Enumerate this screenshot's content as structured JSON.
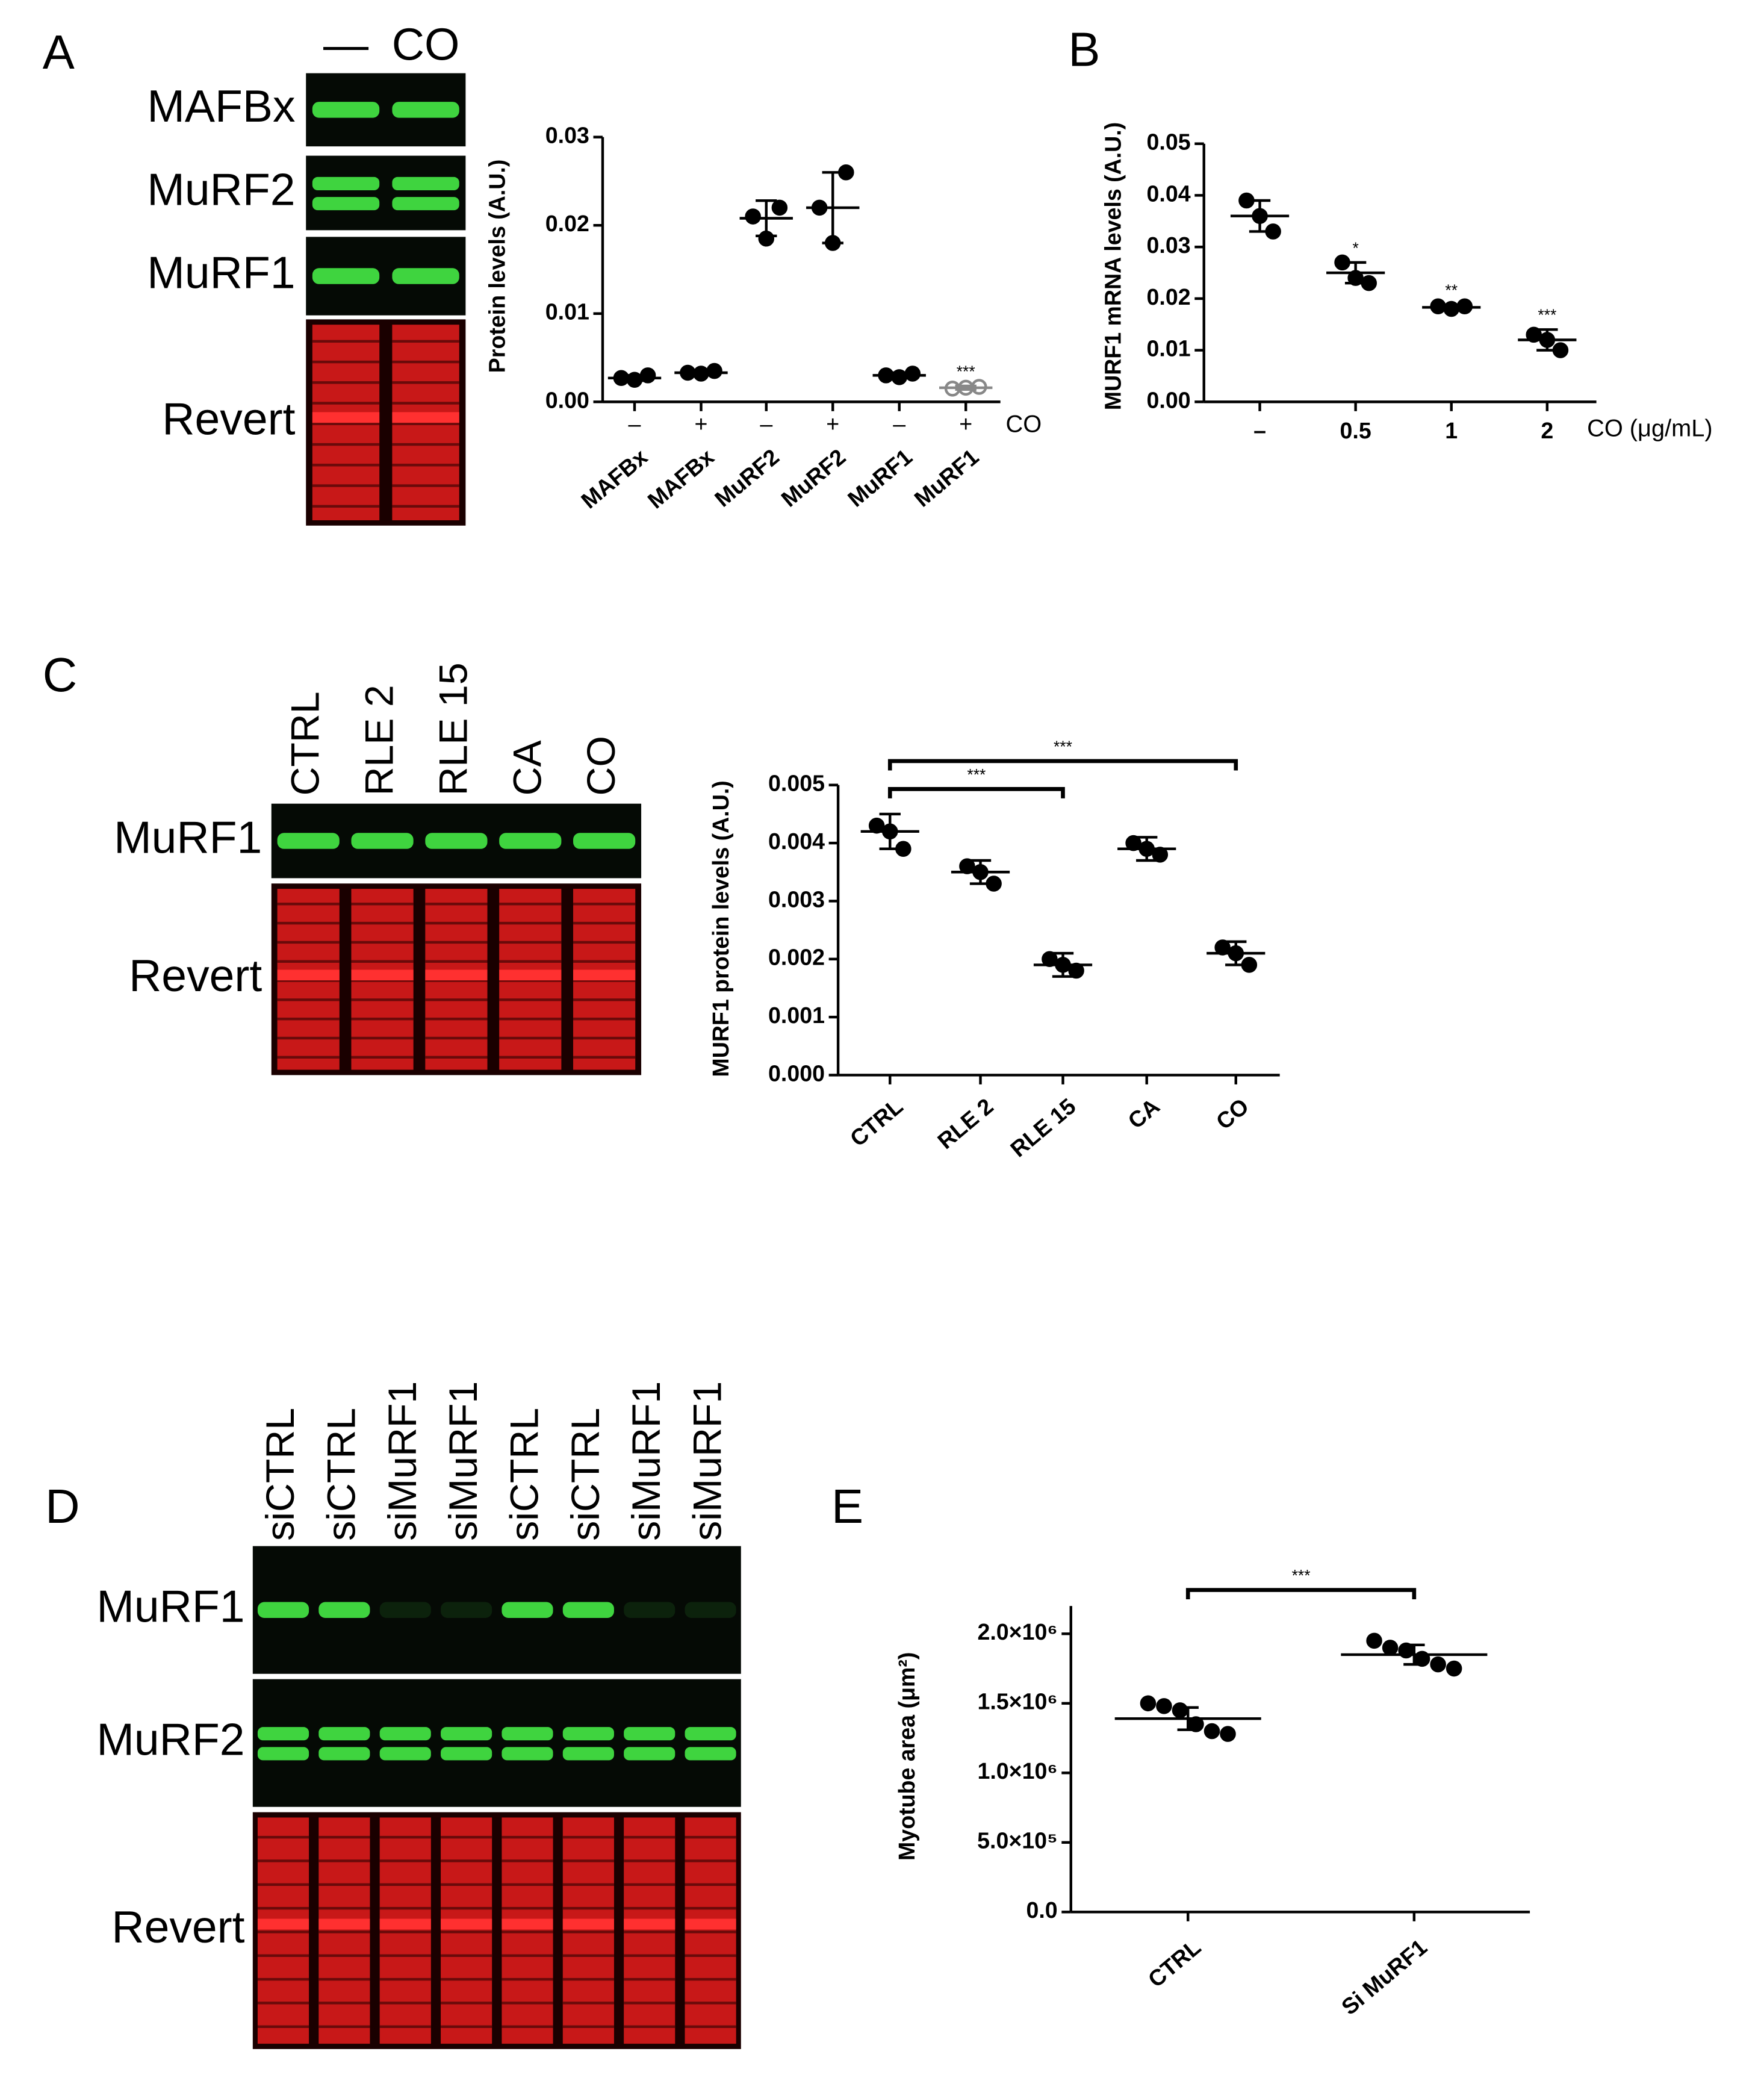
{
  "chart_data": [
    {
      "type": "dot",
      "panel": "A",
      "ylabel": "Protein levels (A.U.)",
      "categories": [
        "MAFBx",
        "MAFBx",
        "MuRF2",
        "MuRF2",
        "MuRF1",
        "MuRF1"
      ],
      "treatments": [
        "–",
        "+",
        "–",
        "+",
        "–",
        "+"
      ],
      "treatment_label": "CO",
      "ylim": [
        0,
        0.03
      ],
      "yticks": [
        {
          "value": 0,
          "label": "0.00"
        },
        0.01,
        0.02,
        0.03
      ],
      "color": "#000000",
      "groups": [
        {
          "points": [
            0.0027,
            0.0025,
            0.003
          ],
          "mean": 0.0027,
          "sd": 0.0003
        },
        {
          "points": [
            0.0033,
            0.0032,
            0.0035
          ],
          "mean": 0.0033,
          "sd": 0.0002
        },
        {
          "points": [
            0.021,
            0.0185,
            0.022
          ],
          "mean": 0.0208,
          "sd": 0.002
        },
        {
          "points": [
            0.022,
            0.018,
            0.026
          ],
          "mean": 0.022,
          "sd": 0.004
        },
        {
          "points": [
            0.003,
            0.0028,
            0.0032
          ],
          "mean": 0.003,
          "sd": 0.0003
        },
        {
          "points": [
            0.0015,
            0.0016,
            0.0017
          ],
          "mean": 0.0016,
          "sd": 0.0002,
          "annotation": "***",
          "color": "#888888"
        }
      ]
    },
    {
      "type": "dot",
      "panel": "B",
      "ylabel": "MURF1 mRNA levels (A.U.)",
      "xlabel": "CO (μg/mL)",
      "categories": [
        "–",
        "0.5",
        "1",
        "2"
      ],
      "ylim": [
        0,
        0.05
      ],
      "yticks": [
        {
          "value": 0,
          "label": "0.00"
        },
        0.01,
        0.02,
        0.03,
        0.04,
        0.05
      ],
      "color": "#000000",
      "groups": [
        {
          "points": [
            0.039,
            0.036,
            0.033
          ],
          "mean": 0.036,
          "sd": 0.003
        },
        {
          "points": [
            0.027,
            0.024,
            0.023
          ],
          "mean": 0.025,
          "sd": 0.002,
          "annotation": "*"
        },
        {
          "points": [
            0.0185,
            0.018,
            0.0185
          ],
          "mean": 0.0183,
          "sd": 0.0005,
          "annotation": "**"
        },
        {
          "points": [
            0.013,
            0.012,
            0.01
          ],
          "mean": 0.012,
          "sd": 0.002,
          "annotation": "***"
        }
      ]
    },
    {
      "type": "dot",
      "panel": "C",
      "ylabel": "MURF1 protein levels (A.U.)",
      "categories": [
        "CTRL",
        "RLE 2",
        "RLE 15",
        "CA",
        "CO"
      ],
      "ylim": [
        0,
        0.005
      ],
      "yticks": [
        {
          "value": 0,
          "label": "0.000"
        },
        0.001,
        0.002,
        0.003,
        0.004,
        0.005
      ],
      "color": "#000000",
      "groups": [
        {
          "points": [
            0.0043,
            0.0042,
            0.0039
          ],
          "mean": 0.0042,
          "sd": 0.0003
        },
        {
          "points": [
            0.0036,
            0.0035,
            0.0033
          ],
          "mean": 0.0035,
          "sd": 0.0002
        },
        {
          "points": [
            0.002,
            0.0019,
            0.0018
          ],
          "mean": 0.0019,
          "sd": 0.0002
        },
        {
          "points": [
            0.004,
            0.0039,
            0.0038
          ],
          "mean": 0.0039,
          "sd": 0.0002
        },
        {
          "points": [
            0.0022,
            0.0021,
            0.0019
          ],
          "mean": 0.0021,
          "sd": 0.0002
        }
      ],
      "brackets": [
        {
          "between": [
            "CTRL",
            "CO"
          ],
          "label": "***"
        },
        {
          "between": [
            "CTRL",
            "RLE 15"
          ],
          "label": "***"
        }
      ]
    },
    {
      "type": "dot",
      "panel": "E",
      "ylabel": "Myotube area (μm²)",
      "categories": [
        "CTRL",
        "Si MuRF1"
      ],
      "ylim": [
        0,
        2200000
      ],
      "yticks": [
        {
          "value": 0,
          "label": "0.0"
        },
        {
          "value": 500000,
          "label": "5.0×10⁵"
        },
        {
          "value": 1000000,
          "label": "1.0×10⁶"
        },
        {
          "value": 1500000,
          "label": "1.5×10⁶"
        },
        {
          "value": 2000000,
          "label": "2.0×10⁶"
        }
      ],
      "color": "#000000",
      "groups": [
        {
          "points": [
            1500000,
            1480000,
            1450000,
            1350000,
            1300000,
            1280000
          ],
          "mean": 1390000,
          "sd": 80000
        },
        {
          "points": [
            1950000,
            1900000,
            1880000,
            1820000,
            1780000,
            1750000
          ],
          "mean": 1850000,
          "sd": 70000
        }
      ],
      "brackets": [
        {
          "between": [
            "CTRL",
            "Si MuRF1"
          ],
          "label": "***"
        }
      ]
    }
  ],
  "blots": [
    {
      "lanes": [
        "—",
        "CO"
      ],
      "rows": [
        "MAFBx",
        "MuRF2",
        "MuRF1",
        "Revert"
      ]
    },
    {
      "lanes": [
        "CTRL",
        "RLE 2",
        "RLE 15",
        "CA",
        "CO"
      ],
      "rows": [
        "MuRF1",
        "Revert"
      ]
    },
    {
      "panel": "D",
      "lanes": [
        "siCTRL",
        "siCTRL",
        "siMuRF1",
        "siMuRF1",
        "siCTRL",
        "siCTRL",
        "siMuRF1",
        "siMuRF1"
      ],
      "rows": [
        "MuRF1",
        "MuRF2",
        "Revert"
      ]
    }
  ]
}
